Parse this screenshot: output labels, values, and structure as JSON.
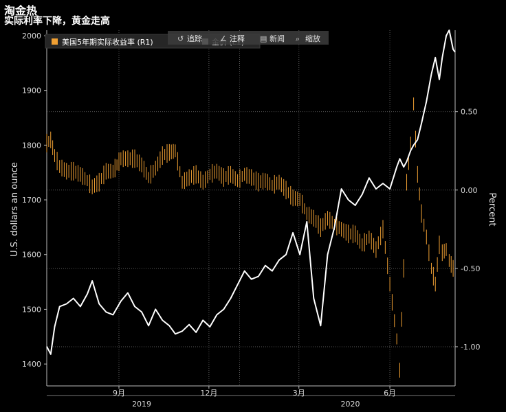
{
  "header": {
    "title": "淘金热",
    "subtitle": "实际利率下降，黄金走高"
  },
  "toolbar": {
    "items": [
      "追踪",
      "注释",
      "新闻",
      "缩放"
    ]
  },
  "legend": [
    "美国5年期实际收益率 (R1)",
    "金价 (L1)"
  ],
  "colors": {
    "background": "#000000",
    "yield": "#f0a033",
    "gold": "#ffffff",
    "grid": "#5a5a5a"
  },
  "chart_data": {
    "type": "line",
    "ylabel_left": "U.S. dollars an ounce",
    "ylabel_right": "Percent",
    "x_month_ticks": [
      "9月",
      "12月",
      "3月",
      "6月"
    ],
    "x_year_ticks": [
      "2019",
      "2020"
    ],
    "left_yticks": [
      1400,
      1500,
      1600,
      1700,
      1800,
      1900,
      2000
    ],
    "right_yticks": [
      "0.50",
      "0.00",
      "-0.50",
      "-1.00"
    ],
    "xlim": [
      "2019-06-20",
      "2020-08-06"
    ],
    "ylim_left": [
      1360,
      2010
    ],
    "ylim_right": [
      -1.25,
      1.02
    ],
    "series": [
      {
        "name": "美国5年期实际收益率",
        "axis": "right",
        "style": "bar-ohlc",
        "points": [
          [
            "2019-06-20",
            0.3
          ],
          [
            "2019-06-24",
            0.32
          ],
          [
            "2019-06-28",
            0.22
          ],
          [
            "2019-07-03",
            0.15
          ],
          [
            "2019-07-10",
            0.12
          ],
          [
            "2019-07-17",
            0.12
          ],
          [
            "2019-07-24",
            0.1
          ],
          [
            "2019-07-31",
            0.06
          ],
          [
            "2019-08-05",
            0.02
          ],
          [
            "2019-08-12",
            0.05
          ],
          [
            "2019-08-19",
            0.12
          ],
          [
            "2019-08-26",
            0.12
          ],
          [
            "2019-09-03",
            0.2
          ],
          [
            "2019-09-10",
            0.2
          ],
          [
            "2019-09-17",
            0.2
          ],
          [
            "2019-09-24",
            0.16
          ],
          [
            "2019-10-01",
            0.08
          ],
          [
            "2019-10-08",
            0.14
          ],
          [
            "2019-10-15",
            0.22
          ],
          [
            "2019-10-22",
            0.24
          ],
          [
            "2019-10-28",
            0.25
          ],
          [
            "2019-11-04",
            0.05
          ],
          [
            "2019-11-11",
            0.08
          ],
          [
            "2019-11-18",
            0.1
          ],
          [
            "2019-11-25",
            0.05
          ],
          [
            "2019-12-02",
            0.1
          ],
          [
            "2019-12-09",
            0.12
          ],
          [
            "2019-12-16",
            0.08
          ],
          [
            "2019-12-23",
            0.1
          ],
          [
            "2019-12-30",
            0.06
          ],
          [
            "2020-01-06",
            0.1
          ],
          [
            "2020-01-13",
            0.08
          ],
          [
            "2020-01-20",
            0.05
          ],
          [
            "2020-01-27",
            0.06
          ],
          [
            "2020-02-03",
            0.03
          ],
          [
            "2020-02-10",
            0.05
          ],
          [
            "2020-02-17",
            0.0
          ],
          [
            "2020-02-24",
            -0.05
          ],
          [
            "2020-03-02",
            -0.06
          ],
          [
            "2020-03-09",
            -0.15
          ],
          [
            "2020-03-16",
            -0.18
          ],
          [
            "2020-03-23",
            -0.24
          ],
          [
            "2020-03-30",
            -0.18
          ],
          [
            "2020-04-06",
            -0.22
          ],
          [
            "2020-04-13",
            -0.25
          ],
          [
            "2020-04-20",
            -0.28
          ],
          [
            "2020-04-27",
            -0.28
          ],
          [
            "2020-05-04",
            -0.35
          ],
          [
            "2020-05-11",
            -0.3
          ],
          [
            "2020-05-18",
            -0.38
          ],
          [
            "2020-05-25",
            -0.25
          ],
          [
            "2020-06-01",
            -0.6
          ],
          [
            "2020-06-08",
            -0.95
          ],
          [
            "2020-06-11",
            -1.15
          ],
          [
            "2020-06-15",
            -0.5
          ],
          [
            "2020-06-18",
            0.05
          ],
          [
            "2020-06-22",
            0.3
          ],
          [
            "2020-06-25",
            0.55
          ],
          [
            "2020-06-29",
            0.1
          ],
          [
            "2020-07-03",
            -0.15
          ],
          [
            "2020-07-08",
            -0.3
          ],
          [
            "2020-07-13",
            -0.5
          ],
          [
            "2020-07-17",
            -0.6
          ],
          [
            "2020-07-21",
            -0.35
          ],
          [
            "2020-07-24",
            -0.4
          ],
          [
            "2020-07-28",
            -0.38
          ],
          [
            "2020-07-31",
            -0.45
          ],
          [
            "2020-08-04",
            -0.5
          ],
          [
            "2020-08-06",
            -0.52
          ]
        ]
      },
      {
        "name": "金价",
        "axis": "left",
        "style": "line",
        "points": [
          [
            "2019-06-20",
            1432
          ],
          [
            "2019-06-24",
            1418
          ],
          [
            "2019-06-28",
            1468
          ],
          [
            "2019-07-03",
            1505
          ],
          [
            "2019-07-10",
            1510
          ],
          [
            "2019-07-17",
            1520
          ],
          [
            "2019-07-24",
            1505
          ],
          [
            "2019-07-31",
            1528
          ],
          [
            "2019-08-05",
            1552
          ],
          [
            "2019-08-12",
            1510
          ],
          [
            "2019-08-19",
            1495
          ],
          [
            "2019-08-26",
            1490
          ],
          [
            "2019-09-03",
            1515
          ],
          [
            "2019-09-10",
            1530
          ],
          [
            "2019-09-17",
            1505
          ],
          [
            "2019-09-24",
            1495
          ],
          [
            "2019-10-01",
            1470
          ],
          [
            "2019-10-08",
            1500
          ],
          [
            "2019-10-15",
            1480
          ],
          [
            "2019-10-22",
            1470
          ],
          [
            "2019-10-28",
            1455
          ],
          [
            "2019-11-04",
            1460
          ],
          [
            "2019-11-11",
            1472
          ],
          [
            "2019-11-18",
            1458
          ],
          [
            "2019-11-25",
            1480
          ],
          [
            "2019-12-02",
            1468
          ],
          [
            "2019-12-09",
            1490
          ],
          [
            "2019-12-16",
            1500
          ],
          [
            "2019-12-23",
            1520
          ],
          [
            "2019-12-30",
            1545
          ],
          [
            "2020-01-06",
            1570
          ],
          [
            "2020-01-13",
            1555
          ],
          [
            "2020-01-20",
            1560
          ],
          [
            "2020-01-27",
            1580
          ],
          [
            "2020-02-03",
            1570
          ],
          [
            "2020-02-10",
            1590
          ],
          [
            "2020-02-17",
            1600
          ],
          [
            "2020-02-24",
            1640
          ],
          [
            "2020-03-02",
            1600
          ],
          [
            "2020-03-09",
            1660
          ],
          [
            "2020-03-16",
            1520
          ],
          [
            "2020-03-23",
            1470
          ],
          [
            "2020-03-30",
            1600
          ],
          [
            "2020-04-06",
            1650
          ],
          [
            "2020-04-13",
            1720
          ],
          [
            "2020-04-20",
            1700
          ],
          [
            "2020-04-27",
            1690
          ],
          [
            "2020-05-04",
            1710
          ],
          [
            "2020-05-11",
            1740
          ],
          [
            "2020-05-18",
            1720
          ],
          [
            "2020-05-25",
            1730
          ],
          [
            "2020-06-01",
            1720
          ],
          [
            "2020-06-08",
            1760
          ],
          [
            "2020-06-11",
            1775
          ],
          [
            "2020-06-15",
            1760
          ],
          [
            "2020-06-18",
            1770
          ],
          [
            "2020-06-22",
            1790
          ],
          [
            "2020-06-25",
            1800
          ],
          [
            "2020-06-29",
            1810
          ],
          [
            "2020-07-03",
            1840
          ],
          [
            "2020-07-08",
            1880
          ],
          [
            "2020-07-13",
            1930
          ],
          [
            "2020-07-17",
            1960
          ],
          [
            "2020-07-21",
            1920
          ],
          [
            "2020-07-24",
            1960
          ],
          [
            "2020-07-28",
            2000
          ],
          [
            "2020-07-31",
            2010
          ],
          [
            "2020-08-04",
            1975
          ],
          [
            "2020-08-06",
            1970
          ]
        ]
      }
    ]
  }
}
